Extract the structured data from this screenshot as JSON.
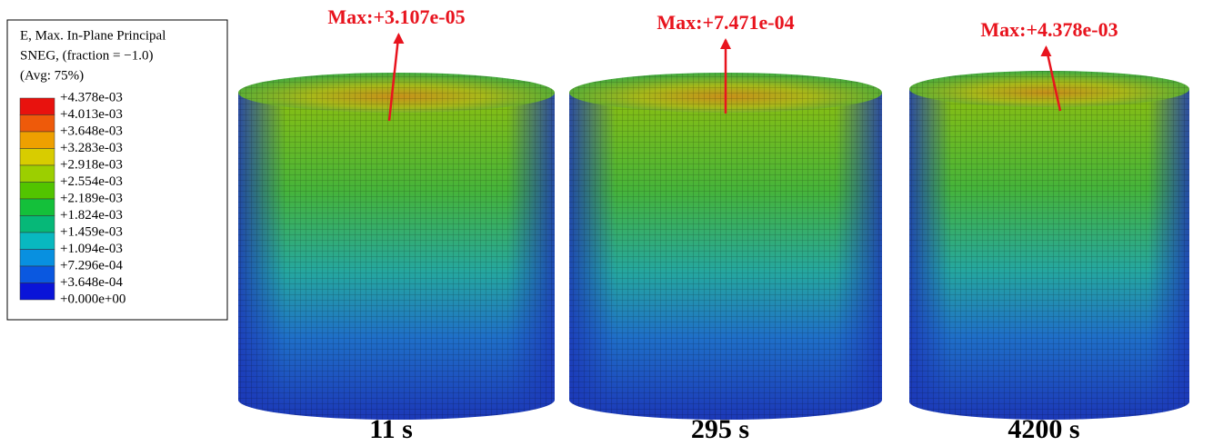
{
  "legend": {
    "title": [
      "E, Max. In-Plane Principal",
      "SNEG, (fraction = −1.0)",
      "(Avg: 75%)"
    ],
    "levels": [
      "+4.378e-03",
      "+4.013e-03",
      "+3.648e-03",
      "+3.283e-03",
      "+2.918e-03",
      "+2.554e-03",
      "+2.189e-03",
      "+1.824e-03",
      "+1.459e-03",
      "+1.094e-03",
      "+7.296e-04",
      "+3.648e-04",
      "+0.000e+00"
    ]
  },
  "panels": [
    {
      "max_label": "Max:+3.107e-05",
      "time": "11 s"
    },
    {
      "max_label": "Max:+7.471e-04",
      "time": "295 s"
    },
    {
      "max_label": "Max:+4.378e-03",
      "time": "4200 s"
    }
  ]
}
